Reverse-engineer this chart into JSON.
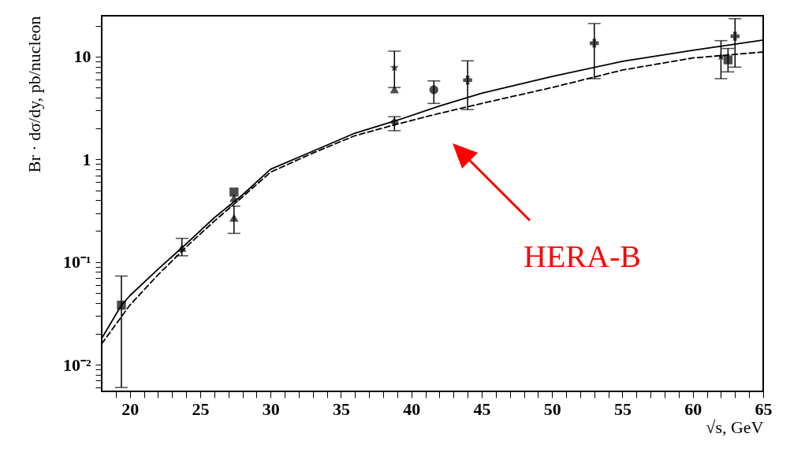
{
  "chart_data": {
    "type": "scatter",
    "xlabel": "√s, GeV",
    "ylabel": "Br · dσ/dy, pb/nucleon",
    "log": true,
    "xlim": [
      18,
      65
    ],
    "ylim": [
      0.0055,
      25
    ],
    "xticks": [
      {
        "value": 19,
        "label": null
      },
      20,
      {
        "value": 21,
        "label": null
      },
      {
        "value": 22,
        "label": null
      },
      {
        "value": 23,
        "label": null
      },
      {
        "value": 24,
        "label": null
      },
      25,
      {
        "value": 26,
        "label": null
      },
      {
        "value": 27,
        "label": null
      },
      {
        "value": 28,
        "label": null
      },
      {
        "value": 29,
        "label": null
      },
      30,
      {
        "value": 31,
        "label": null
      },
      {
        "value": 32,
        "label": null
      },
      {
        "value": 33,
        "label": null
      },
      {
        "value": 34,
        "label": null
      },
      35,
      {
        "value": 36,
        "label": null
      },
      {
        "value": 37,
        "label": null
      },
      {
        "value": 38,
        "label": null
      },
      {
        "value": 39,
        "label": null
      },
      40,
      {
        "value": 41,
        "label": null
      },
      {
        "value": 42,
        "label": null
      },
      {
        "value": 43,
        "label": null
      },
      {
        "value": 44,
        "label": null
      },
      45,
      {
        "value": 46,
        "label": null
      },
      {
        "value": 47,
        "label": null
      },
      {
        "value": 48,
        "label": null
      },
      {
        "value": 49,
        "label": null
      },
      50,
      {
        "value": 51,
        "label": null
      },
      {
        "value": 52,
        "label": null
      },
      {
        "value": 53,
        "label": null
      },
      {
        "value": 54,
        "label": null
      },
      55,
      {
        "value": 56,
        "label": null
      },
      {
        "value": 57,
        "label": null
      },
      {
        "value": 58,
        "label": null
      },
      {
        "value": 59,
        "label": null
      },
      60,
      {
        "value": 61,
        "label": null
      },
      {
        "value": 62,
        "label": null
      },
      {
        "value": 63,
        "label": null
      },
      {
        "value": 64,
        "label": null
      },
      65
    ],
    "yticks": [
      {
        "value": 0.006,
        "label": null
      },
      {
        "value": 0.007,
        "label": null
      },
      {
        "value": 0.008,
        "label": null
      },
      {
        "value": 0.009,
        "label": null
      },
      {
        "value": 0.01,
        "label": "10⁻²"
      },
      {
        "value": 0.02,
        "label": null
      },
      {
        "value": 0.03,
        "label": null
      },
      {
        "value": 0.04,
        "label": null
      },
      {
        "value": 0.05,
        "label": null
      },
      {
        "value": 0.06,
        "label": null
      },
      {
        "value": 0.07,
        "label": null
      },
      {
        "value": 0.08,
        "label": null
      },
      {
        "value": 0.09,
        "label": null
      },
      {
        "value": 0.1,
        "label": "10⁻¹"
      },
      {
        "value": 0.2,
        "label": null
      },
      {
        "value": 0.3,
        "label": null
      },
      {
        "value": 0.4,
        "label": null
      },
      {
        "value": 0.5,
        "label": null
      },
      {
        "value": 0.6,
        "label": null
      },
      {
        "value": 0.7,
        "label": null
      },
      {
        "value": 0.8,
        "label": null
      },
      {
        "value": 0.9,
        "label": null
      },
      1,
      {
        "value": 2,
        "label": null
      },
      {
        "value": 3,
        "label": null
      },
      {
        "value": 4,
        "label": null
      },
      {
        "value": 5,
        "label": null
      },
      {
        "value": 6,
        "label": null
      },
      {
        "value": 7,
        "label": null
      },
      {
        "value": 8,
        "label": null
      },
      {
        "value": 9,
        "label": null
      },
      10,
      {
        "value": 20,
        "label": null
      }
    ],
    "annotations": [
      "HERA-B"
    ],
    "series": [
      {
        "type": "line",
        "line_style": "solid",
        "color": "#000000",
        "x": [
          18,
          19.4,
          20,
          22,
          24,
          26,
          28,
          30,
          33,
          36,
          39,
          42,
          45,
          50,
          55,
          60,
          65
        ],
        "values": [
          0.018,
          0.038,
          0.047,
          0.085,
          0.15,
          0.27,
          0.45,
          0.8,
          1.2,
          1.8,
          2.4,
          3.3,
          4.4,
          6.4,
          9.0,
          11.5,
          14.5
        ]
      },
      {
        "type": "line",
        "line_style": "dashed",
        "color": "#000000",
        "x": [
          18,
          20,
          22,
          24,
          26,
          28,
          30,
          33,
          36,
          39,
          42,
          45,
          50,
          55,
          60,
          65
        ],
        "values": [
          0.016,
          0.038,
          0.075,
          0.14,
          0.25,
          0.43,
          0.75,
          1.15,
          1.7,
          2.2,
          2.8,
          3.5,
          5.0,
          7.4,
          9.7,
          11.1
        ]
      },
      {
        "marker": "square",
        "color": "#000000",
        "x": [
          19.4
        ],
        "values": [
          0.038
        ],
        "errors": [
          [
            0.006,
            0.073
          ]
        ]
      },
      {
        "marker": "triangle",
        "color": "#000000",
        "x": [
          23.7
        ],
        "values": [
          0.137
        ],
        "errors": [
          [
            0.115,
            0.17
          ]
        ]
      },
      {
        "marker": "square",
        "color": "#000000",
        "x": [
          27.4
        ],
        "values": [
          0.48
        ],
        "errors": [
          null
        ]
      },
      {
        "marker": "triangle",
        "color": "#000000",
        "x": [
          27.4,
          38.8
        ],
        "values": [
          0.42,
          4.8
        ],
        "errors": [
          null,
          null
        ]
      },
      {
        "marker": "triangle",
        "color": "#000000",
        "x": [
          27.4
        ],
        "values": [
          0.27
        ],
        "errors": [
          [
            0.19,
            0.35
          ]
        ]
      },
      {
        "marker": "star",
        "color": "#000000",
        "x": [
          38.8,
          62
        ],
        "values": [
          7.8,
          10
        ],
        "errors": [
          [
            5.0,
            11.3
          ],
          [
            6.1,
            14.3
          ]
        ]
      },
      {
        "marker": "diamond",
        "color": "#000000",
        "x": [
          38.8
        ],
        "values": [
          2.3
        ],
        "errors": [
          [
            1.9,
            2.6
          ]
        ]
      },
      {
        "marker": "circle",
        "color": "#000000",
        "x": [
          41.6
        ],
        "values": [
          4.75
        ],
        "errors": [
          [
            3.5,
            5.8
          ]
        ]
      },
      {
        "marker": "cross",
        "color": "#000000",
        "x": [
          44,
          53,
          63
        ],
        "values": [
          5.9,
          13.5,
          15.8
        ],
        "errors": [
          [
            3.05,
            9.1
          ],
          [
            6.1,
            21
          ],
          [
            7.9,
            23.4
          ]
        ]
      },
      {
        "marker": "square",
        "color": "#000000",
        "x": [
          62.5
        ],
        "values": [
          9.3
        ],
        "errors": [
          [
            7.1,
            12
          ]
        ]
      }
    ]
  }
}
